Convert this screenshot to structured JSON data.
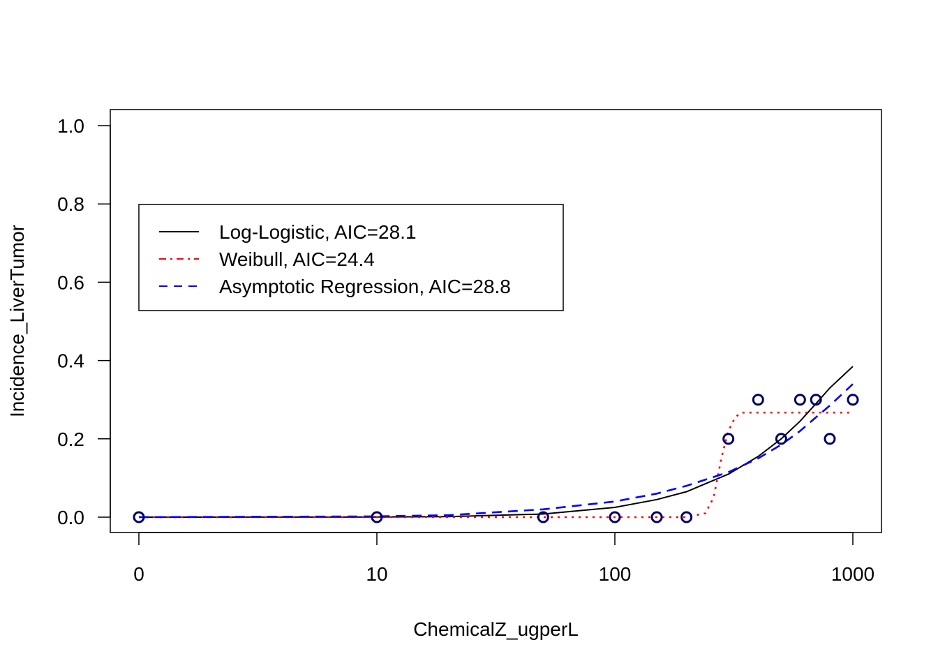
{
  "chart_data": {
    "type": "scatter",
    "title": "",
    "xlabel": "ChemicalZ_ugperL",
    "ylabel": "Incidence_LiverTumor",
    "x_scale": "log",
    "xlim": [
      1,
      1000
    ],
    "ylim": [
      0,
      1
    ],
    "x_ticks": [
      {
        "value": 1,
        "label": "0"
      },
      {
        "value": 10,
        "label": "10"
      },
      {
        "value": 100,
        "label": "100"
      },
      {
        "value": 1000,
        "label": "1000"
      }
    ],
    "y_ticks": [
      {
        "value": 0,
        "label": "0.0"
      },
      {
        "value": 0.2,
        "label": "0.2"
      },
      {
        "value": 0.4,
        "label": "0.4"
      },
      {
        "value": 0.6,
        "label": "0.6"
      },
      {
        "value": 0.8,
        "label": "0.8"
      },
      {
        "value": 1,
        "label": "1.0"
      }
    ],
    "grid": false,
    "legend_position": "top-left",
    "points": {
      "x": [
        1,
        10,
        50,
        100,
        150,
        200,
        300,
        400,
        500,
        600,
        700,
        800,
        1000
      ],
      "y": [
        0,
        0,
        0,
        0,
        0,
        0,
        0.2,
        0.3,
        0.2,
        0.3,
        0.3,
        0.2,
        0.3
      ],
      "color": "#000066"
    },
    "series": [
      {
        "name": "Log-Logistic, AIC=28.1",
        "color": "#000000",
        "dash": "solid",
        "x": [
          1,
          10,
          20,
          50,
          100,
          150,
          200,
          300,
          400,
          500,
          600,
          700,
          800,
          1000
        ],
        "y": [
          0,
          0.0003,
          0.0014,
          0.008,
          0.025,
          0.045,
          0.065,
          0.11,
          0.155,
          0.2,
          0.245,
          0.29,
          0.33,
          0.385
        ]
      },
      {
        "name": "Weibull, AIC=24.4",
        "color": "#ff0000",
        "dash": "dotted",
        "x": [
          1,
          10,
          100,
          200,
          240,
          260,
          280,
          300,
          320,
          340,
          1000
        ],
        "y": [
          0,
          0,
          0,
          0,
          0.01,
          0.05,
          0.15,
          0.22,
          0.255,
          0.267,
          0.267
        ]
      },
      {
        "name": "Asymptotic Regression, AIC=28.8",
        "color": "#0000ff",
        "dash": "dashed",
        "x": [
          1,
          10,
          20,
          50,
          100,
          150,
          200,
          300,
          400,
          500,
          600,
          700,
          800,
          1000
        ],
        "y": [
          0,
          0.002,
          0.005,
          0.02,
          0.04,
          0.06,
          0.08,
          0.115,
          0.15,
          0.185,
          0.22,
          0.255,
          0.285,
          0.34
        ]
      }
    ]
  }
}
